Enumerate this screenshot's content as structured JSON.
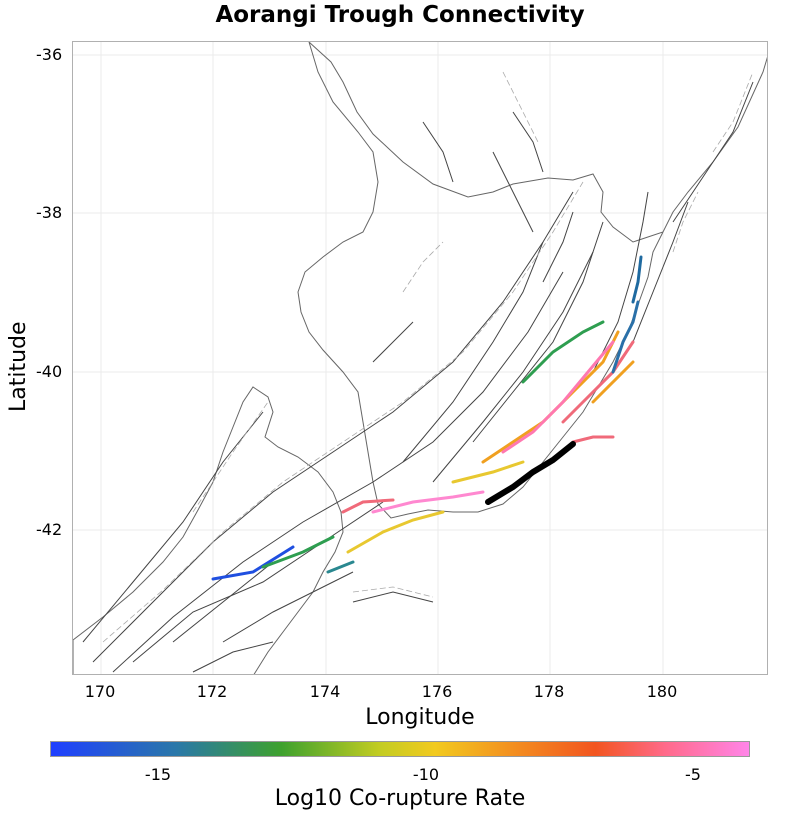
{
  "title": "Aorangi Trough Connectivity",
  "x_axis": {
    "label": "Longitude",
    "ticks": [
      "170",
      "172",
      "174",
      "176",
      "178",
      "180"
    ]
  },
  "y_axis": {
    "label": "Latitude",
    "ticks": [
      "-36",
      "-38",
      "-40",
      "-42"
    ]
  },
  "colorbar": {
    "label": "Log10 Co-rupture Rate",
    "ticks": [
      "-15",
      "-10",
      "-5"
    ],
    "colors": [
      "#1f3fff",
      "#2a78a8",
      "#3ea12e",
      "#c2cc22",
      "#f2ca1f",
      "#f39020",
      "#f25520",
      "#ff6a8a",
      "#ff85e8"
    ]
  },
  "colors": {
    "target_fault": "#000000",
    "fault_trace": "#444444",
    "coastline": "#666666",
    "grid": "#ebebeb"
  }
}
